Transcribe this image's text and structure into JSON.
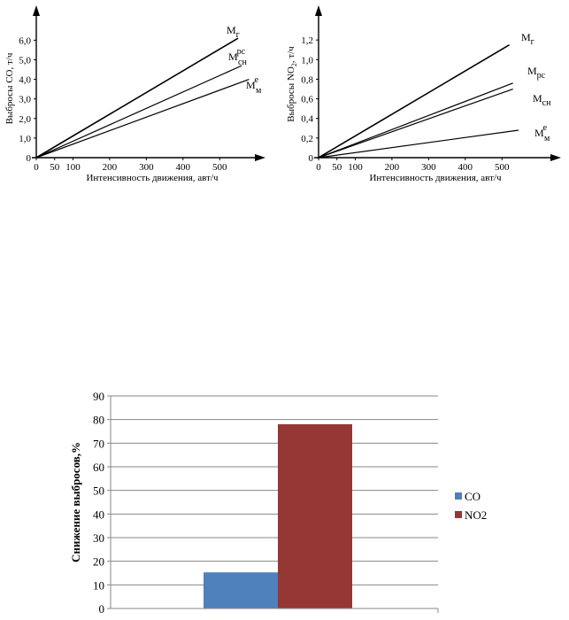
{
  "chart_data": [
    {
      "type": "line",
      "title": "",
      "xlabel": "Интенсивность движения,  авт/ч",
      "ylabel": "Выбросы  СО,  т/ч",
      "xlim": [
        0,
        600
      ],
      "ylim": [
        0,
        7.5
      ],
      "x_ticks": [
        "0",
        "50",
        "100",
        "200",
        "300",
        "400",
        "500"
      ],
      "y_ticks": [
        "0",
        "1,0",
        "2,0",
        "3,0",
        "4,0",
        "5,0",
        "6,0"
      ],
      "series": [
        {
          "name": "Mг",
          "base": "M",
          "sub": "г",
          "sup": "",
          "x": [
            0,
            550
          ],
          "y": [
            0,
            6.1
          ]
        },
        {
          "name": "Mрсн",
          "base": "M",
          "sub": "сн",
          "sup": "рс",
          "x": [
            0,
            560
          ],
          "y": [
            0,
            4.7
          ]
        },
        {
          "name": "Mем",
          "base": "M",
          "sub": "м",
          "sup": "е",
          "x": [
            0,
            580
          ],
          "y": [
            0,
            4.0
          ]
        }
      ]
    },
    {
      "type": "line",
      "title": "",
      "xlabel": "Интенсивность движения,  авт/ч",
      "ylabel_parts": [
        "Выбросы  NO",
        "2",
        ", т/ч"
      ],
      "xlim": [
        0,
        600
      ],
      "ylim": [
        0,
        1.5
      ],
      "x_ticks": [
        "0",
        "50",
        "100",
        "200",
        "300",
        "400",
        "500"
      ],
      "y_ticks": [
        "0",
        "0,2",
        "0,4",
        "0,6",
        "0,8",
        "1,0",
        "1,2"
      ],
      "series": [
        {
          "name": "Mг",
          "base": "M",
          "sub": "г",
          "sup": "",
          "x": [
            0,
            520
          ],
          "y": [
            0,
            1.15
          ]
        },
        {
          "name": "Mрс",
          "base": "M",
          "sub": "рс",
          "sup": "",
          "x": [
            0,
            530
          ],
          "y": [
            0,
            0.76
          ]
        },
        {
          "name": "Mсн",
          "base": "M",
          "sub": "сн",
          "sup": "",
          "x": [
            0,
            530
          ],
          "y": [
            0,
            0.7
          ]
        },
        {
          "name": "Mем",
          "base": "M",
          "sub": "м",
          "sup": "е",
          "x": [
            0,
            545
          ],
          "y": [
            0,
            0.28
          ]
        }
      ]
    },
    {
      "type": "bar",
      "title": "",
      "ylabel": "Снижение выбросов,%",
      "ylim": [
        0,
        90
      ],
      "y_ticks": [
        "0",
        "10",
        "20",
        "30",
        "40",
        "50",
        "60",
        "70",
        "80",
        "90"
      ],
      "categories": [
        ""
      ],
      "legend_position": "right",
      "series": [
        {
          "name": "CO",
          "values": [
            15.3
          ],
          "color": "#4f81bd"
        },
        {
          "name": "NO2",
          "values": [
            78.0
          ],
          "color": "#953735"
        }
      ]
    }
  ]
}
